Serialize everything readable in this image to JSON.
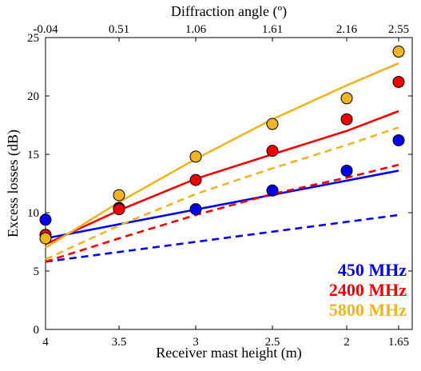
{
  "chart_data": {
    "type": "line",
    "xlabel": "Receiver mast height (m)",
    "x2label": "Diffraction angle (º)",
    "ylabel": "Excess losses (dB)",
    "x_ticks": [
      "4",
      "3.5",
      "3",
      "2.5",
      "2",
      "1.65"
    ],
    "x_tick_values": [
      4,
      3.5,
      3,
      2.5,
      2,
      1.65
    ],
    "x2_ticks": [
      "-0.04",
      "0.51",
      "1.06",
      "1.61",
      "2.16",
      "2.55"
    ],
    "y_ticks": [
      "0",
      "5",
      "10",
      "15",
      "20",
      "25"
    ],
    "xlim": [
      4,
      1.65
    ],
    "ylim": [
      0,
      25
    ],
    "grid": false,
    "legend_position": "bottom-right",
    "series": [
      {
        "name": "450 MHz",
        "color": "#0000ee",
        "points": [
          [
            4,
            9.4
          ],
          [
            3.5,
            10.4
          ],
          [
            3,
            10.3
          ],
          [
            2.5,
            11.9
          ],
          [
            2,
            13.6
          ],
          [
            1.65,
            16.2
          ]
        ],
        "solid": [
          [
            4,
            7.8
          ],
          [
            1.65,
            13.6
          ]
        ],
        "dashed": [
          [
            4,
            5.8
          ],
          [
            1.65,
            9.8
          ]
        ]
      },
      {
        "name": "2400 MHz",
        "color": "#ee0000",
        "points": [
          [
            4,
            8.1
          ],
          [
            3.5,
            10.3
          ],
          [
            3,
            12.8
          ],
          [
            2.5,
            15.3
          ],
          [
            2,
            18.0
          ],
          [
            1.65,
            21.2
          ]
        ],
        "solid": [
          [
            4,
            7.3
          ],
          [
            3.5,
            10.2
          ],
          [
            3,
            12.9
          ],
          [
            2.5,
            15.0
          ],
          [
            2,
            17.0
          ],
          [
            1.65,
            18.7
          ]
        ],
        "dashed": [
          [
            4,
            5.8
          ],
          [
            3.5,
            7.8
          ],
          [
            3,
            9.8
          ],
          [
            2.5,
            11.6
          ],
          [
            2,
            13.0
          ],
          [
            1.65,
            14.1
          ]
        ]
      },
      {
        "name": "5800 MHz",
        "color": "#eeb422",
        "points": [
          [
            4,
            7.8
          ],
          [
            3.5,
            11.5
          ],
          [
            3,
            14.8
          ],
          [
            2.5,
            17.6
          ],
          [
            2,
            19.8
          ],
          [
            1.65,
            23.8
          ]
        ],
        "solid": [
          [
            4,
            7.0
          ],
          [
            3.5,
            10.9
          ],
          [
            3,
            14.6
          ],
          [
            2.5,
            18.0
          ],
          [
            2,
            20.9
          ],
          [
            1.65,
            22.8
          ]
        ],
        "dashed": [
          [
            4,
            6.0
          ],
          [
            3.5,
            8.9
          ],
          [
            3,
            11.6
          ],
          [
            2.5,
            13.8
          ],
          [
            2,
            15.8
          ],
          [
            1.65,
            17.3
          ]
        ]
      }
    ]
  }
}
